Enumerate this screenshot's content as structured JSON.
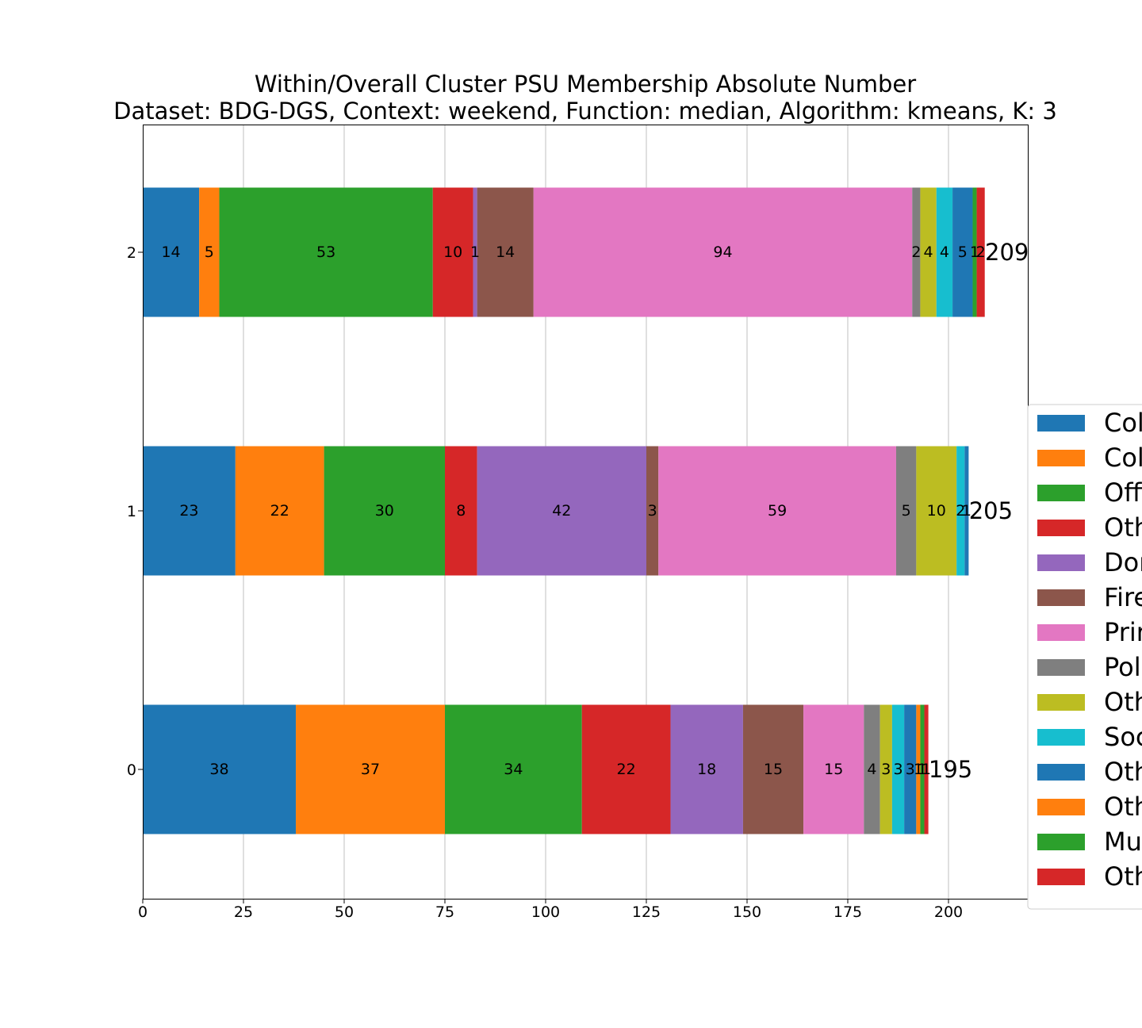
{
  "chart_data": {
    "type": "bar",
    "orientation": "horizontal",
    "stacked": true,
    "title": "Within/Overall Cluster PSU Membership Absolute Number",
    "subtitle": "Dataset: BDG-DGS, Context: weekend, Function: median, Algorithm: kmeans, K: 3",
    "categories": [
      "0",
      "1",
      "2"
    ],
    "xlim": [
      0,
      220
    ],
    "x_ticks": [
      "0",
      "25",
      "50",
      "75",
      "100",
      "125",
      "150",
      "175",
      "200"
    ],
    "grid": "vertical",
    "legend_position": "right (clipped)",
    "totals": [
      195,
      205,
      209
    ],
    "series": [
      {
        "name": "Col",
        "color": "#1f77b4",
        "values": [
          38,
          23,
          14
        ]
      },
      {
        "name": "Col",
        "color": "#ff7f0e",
        "values": [
          37,
          22,
          5
        ]
      },
      {
        "name": "Offi",
        "color": "#2ca02c",
        "values": [
          34,
          30,
          53
        ]
      },
      {
        "name": "Oth",
        "color": "#d62728",
        "values": [
          22,
          8,
          10
        ]
      },
      {
        "name": "Dor",
        "color": "#9467bd",
        "values": [
          18,
          42,
          1
        ]
      },
      {
        "name": "Fire",
        "color": "#8c564b",
        "values": [
          15,
          3,
          14
        ]
      },
      {
        "name": "Prir",
        "color": "#e377c2",
        "values": [
          15,
          59,
          94
        ]
      },
      {
        "name": "Poli",
        "color": "#7f7f7f",
        "values": [
          4,
          5,
          2
        ]
      },
      {
        "name": "Oth",
        "color": "#bcbd22",
        "values": [
          3,
          10,
          4
        ]
      },
      {
        "name": "Soc",
        "color": "#17becf",
        "values": [
          3,
          2,
          4
        ]
      },
      {
        "name": "Oth",
        "color": "#1f77b4",
        "values": [
          3,
          1,
          5
        ]
      },
      {
        "name": "Oth",
        "color": "#ff7f0e",
        "values": [
          1,
          0,
          0
        ]
      },
      {
        "name": "Mul",
        "color": "#2ca02c",
        "values": [
          1,
          0,
          1
        ]
      },
      {
        "name": "Oth",
        "color": "#d62728",
        "values": [
          1,
          0,
          2
        ]
      }
    ]
  }
}
